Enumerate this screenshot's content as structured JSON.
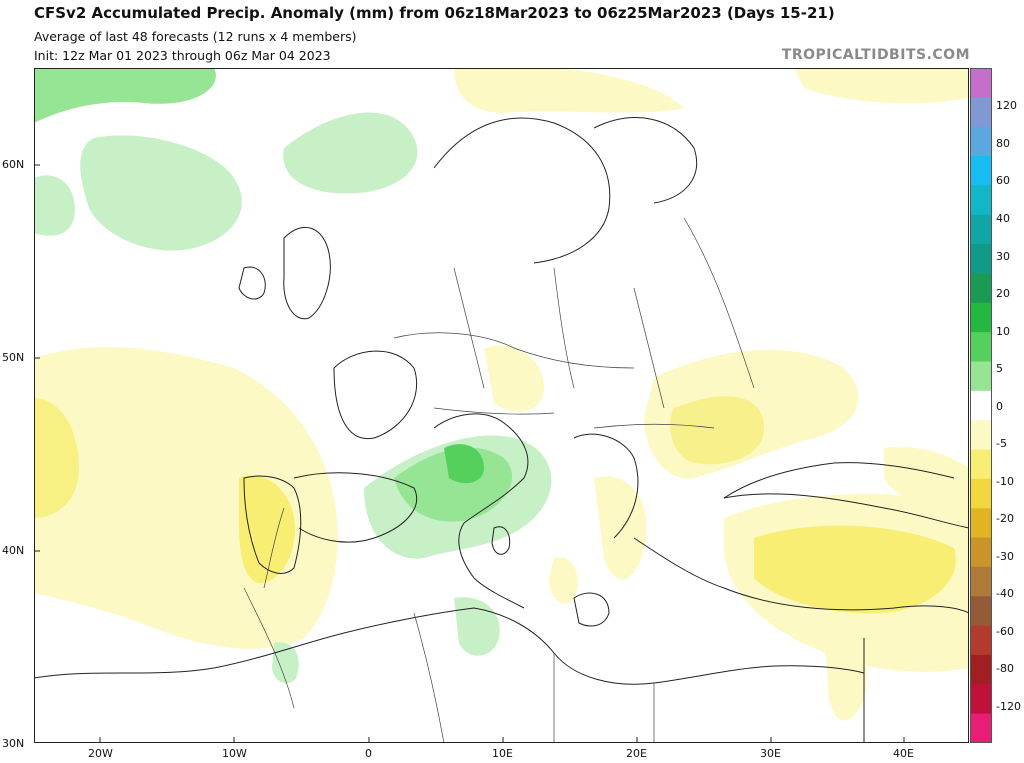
{
  "header": {
    "title": "CFSv2 Accumulated Precip. Anomaly (mm) from 06z18Mar2023 to 06z25Mar2023 (Days 15-21)",
    "subtitle1": "Average of last 48 forecasts (12 runs x 4 members)",
    "subtitle2": "Init: 12z Mar 01 2023 through 06z Mar 04 2023",
    "brand": "TROPICALTIDBITS.COM"
  },
  "axes": {
    "lat_labels": [
      "60N",
      "50N",
      "40N",
      "30N"
    ],
    "lon_labels": [
      "20W",
      "10W",
      "0",
      "10E",
      "20E",
      "30E",
      "40E"
    ]
  },
  "colorbar": {
    "labels": [
      "120",
      "80",
      "60",
      "40",
      "30",
      "20",
      "10",
      "5",
      "0",
      "-5",
      "-10",
      "-20",
      "-30",
      "-40",
      "-60",
      "-80",
      "-120"
    ],
    "colors": [
      "#c46fc9",
      "#8098d4",
      "#5ca7df",
      "#16bdf0",
      "#12b6c7",
      "#10a6a6",
      "#109a8a",
      "#1a9a54",
      "#25b840",
      "#55d05c",
      "#95e595",
      "#ffffff",
      "#fcf9c4",
      "#f7ee73",
      "#f1d63d",
      "#e0b422",
      "#c9942a",
      "#ad7a38",
      "#955a37",
      "#b53a2e",
      "#a11f20",
      "#c0103c",
      "#e81d75"
    ]
  },
  "regions": {
    "wet": [
      "Western Alps",
      "southern France",
      "northeastern Spain",
      "Tunisia"
    ],
    "dry": [
      "Portugal",
      "Turkey",
      "Romania",
      "Adriatic coast"
    ]
  }
}
